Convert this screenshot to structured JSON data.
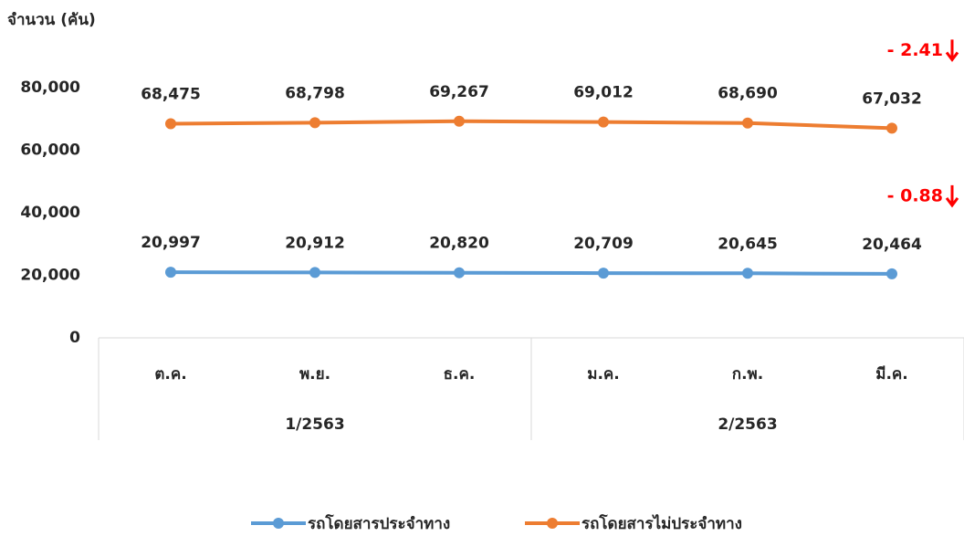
{
  "chart_data": {
    "type": "line",
    "y_axis_label": "จำนวน (คัน)",
    "categories": [
      "ต.ค.",
      "พ.ย.",
      "ธ.ค.",
      "ม.ค.",
      "ก.พ.",
      "มี.ค."
    ],
    "groups": [
      {
        "label": "1/2563",
        "count": 3
      },
      {
        "label": "2/2563",
        "count": 3
      }
    ],
    "series": [
      {
        "name": "รถโดยสารประจำทาง",
        "color": "#5b9bd5",
        "values": [
          20997,
          20912,
          20820,
          20709,
          20645,
          20464
        ],
        "value_labels": [
          "20,997",
          "20,912",
          "20,820",
          "20,709",
          "20,645",
          "20,464"
        ]
      },
      {
        "name": "รถโดยสารไม่ประจำทาง",
        "color": "#ed7d31",
        "values": [
          68475,
          68798,
          69267,
          69012,
          68690,
          67032
        ],
        "value_labels": [
          "68,475",
          "68,798",
          "69,267",
          "69,012",
          "68,690",
          "67,032"
        ]
      }
    ],
    "annotations": [
      "- 0.88",
      "- 2.41"
    ],
    "annotation_color": "#ff0000",
    "ylim": [
      0,
      80000
    ],
    "yticks": [
      0,
      {
        "value": 20000,
        "label": "20,000"
      },
      {
        "value": 40000,
        "label": "40,000"
      },
      {
        "value": 60000,
        "label": "60,000"
      },
      {
        "value": 80000,
        "label": "80,000"
      }
    ],
    "grid": false,
    "legend": "bottom"
  }
}
